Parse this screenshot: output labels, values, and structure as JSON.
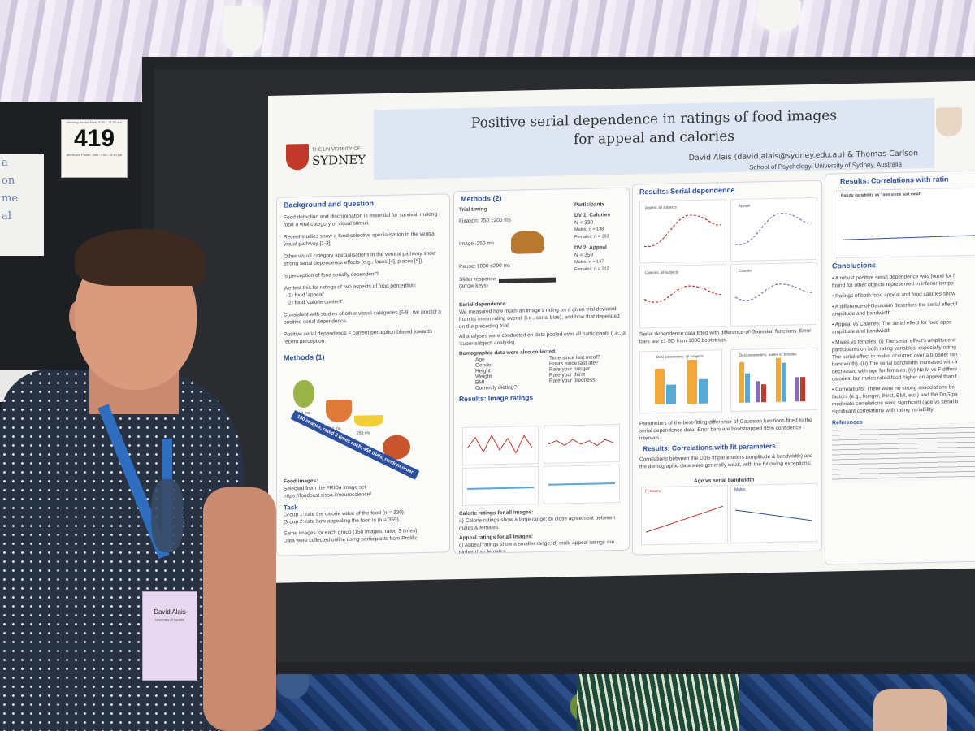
{
  "sign": {
    "number": "419",
    "line_top": "Morning Poster Time: 8:30 – 11:30 am",
    "line_bottom": "Afternoon Poster Time: 4:00 – 5:30 pm"
  },
  "side_note": "a\non\nme\nal",
  "poster": {
    "title_line1": "Positive serial dependence in ratings of food images",
    "title_line2": "for appeal and calories",
    "authors": "David Alais (david.alais@sydney.edu.au) & Thomas Carlson",
    "affiliation": "School of Psychology, University of Sydney, Australia",
    "logo_small": "THE UNIVERSITY OF",
    "logo_big": "SYDNEY",
    "background": {
      "heading": "Background and question",
      "p1": "Food detection and discrimination is essential for survival, making food a vital category of visual stimuli.",
      "p2": "Recent studies show a food-selective specialisation in the ventral visual pathway [1-3].",
      "p3": "Other visual category specialisations in the ventral pathway show strong serial dependence effects (e.g., faces [4], places [5]).",
      "p4": "Is perception of food serially dependent?",
      "p5": "We test this for ratings of two aspects of food perception:",
      "p6": "1) food 'appeal'",
      "p7": "2) food 'calorie content'",
      "p8": "Consistent with studies of other visual categories [6-9], we predict a positive serial dependence.",
      "p9": "Positive serial dependence = current perception biased towards recent perception."
    },
    "methods1": {
      "heading": "Methods (1)",
      "arrow": "150 images, rated 3 times each, 450 trials, random order",
      "ms": "250 ms",
      "food_heading": "Food images:",
      "food_text": "Selected from the FRIDa image set",
      "food_url": "https://foodcast.sissa.it/neuroscience/",
      "task_heading": "Task",
      "task1": "Group 1: rate the calorie value of the food (n = 330).",
      "task2": "Group 2: rate how appealing the food is (n = 359).",
      "task3": "Same images for each group (150 images, rated 3 times)",
      "task4": "Data were collected online using participants from Prolific."
    },
    "methods2": {
      "heading": "Methods (2)",
      "trial_timing": "Trial timing",
      "fixation": "Fixation: 750 ±200 ms",
      "image": "Image: 250 ms",
      "pause": "Pause: 1000 ±200 ms",
      "slider": "Slider response",
      "slider2": "(arrow keys)",
      "participants": "Participants",
      "dv1": "DV 1: Calories",
      "dv1_n": "N = 330",
      "dv1_m": "Males:    n = 138",
      "dv1_f": "Females: n = 192",
      "dv2": "DV 2: Appeal",
      "dv2_n": "N = 359",
      "dv2_m": "Males:    n = 147",
      "dv2_f": "Females: n = 212",
      "sd_heading": "Serial dependence",
      "sd_text": "We measured how much an image's rating on a given trial deviated from its mean rating overall (i.e., serial bias), and how that depended on the preceding trial.",
      "pooled": "All analyses were conducted on data pooled over all participants (i.e., a 'super subject' analysis).",
      "demo_heading": "Demographic data were also collected.",
      "demo_left": [
        "Age",
        "Gender",
        "Height",
        "Weight",
        "BMI",
        "Currently dieting?"
      ],
      "demo_right": [
        "Time since last meal?",
        "Hours since last ate?",
        "Rate your hunger",
        "Rate your thirst",
        "Rate your tiredness"
      ],
      "ratings_heading": "Results: Image ratings",
      "cal_heading": "Calorie ratings for all images:",
      "cal_text": "a) Calorie ratings show a large range; b) close agreement between males & females.",
      "app_heading": "Appeal ratings for all images:",
      "app_text": "c) Appeal ratings show a smaller range; d) male appeal ratings are higher than females."
    },
    "results_sd": {
      "heading": "Results: Serial dependence",
      "panel_labels": [
        "Appeal: all subjects",
        "Appeal",
        "Calories: all subjects",
        "Calories"
      ],
      "caption1": "Serial dependence data fitted with difference-of-Gaussian functions. Error bars are ±1 SD from 1000 bootstraps.",
      "dog1": "DoG parameters: all subjects",
      "dog2": "DoG parameters: males vs females",
      "caption2": "Parameters of the best-fitting difference-of-Gaussian functions fitted to the serial dependence data. Error bars are bootstrapped 95% confidence intervals.",
      "corr_heading": "Results: Correlations with fit parameters",
      "corr_text": "Correlations between the DoG fit parameters (amplitude & bandwidth) and the demographic data were generally weak, with the following exceptions:",
      "corr_plot": "Age vs serial bandwidth",
      "corr_f": "Females",
      "corr_m": "Males"
    },
    "right": {
      "heading": "Results: Correlations with ratin",
      "plot_title": "Rating variability vs 'time since last meal'",
      "conclusions": "Conclusions",
      "c1": "• A robust positive serial dependence was found for f",
      "c1b": "found for other objects represented in inferior tempo",
      "c2": "• Ratings of both food appeal and food calories show",
      "c3": "• A difference-of-Gaussian describes the serial effect f",
      "c3b": "amplitude and bandwidth",
      "c4": "• Appeal vs Calories: The serial effect for food appe",
      "c4b": "amplitude and bandwidth",
      "c5": "• Males vs females: (i) The serial effect's amplitude w",
      "c5b": "participants on both rating variables, especially rating",
      "c5c": "The serial effect in males occurred over a broader ran",
      "c5d": "bandwidth). (iii) The serial bandwidth increased with a",
      "c5e": "decreased with age for females. (iv) No M vs F differe",
      "c5f": "calories, but males rated food higher on appeal than f",
      "c6": "• Correlations: There were no strong associations be",
      "c6b": "factors (e.g., hunger, thirst, BMI, etc.) and the DoG pa",
      "c6c": "moderate correlations were significant (age vs serial b",
      "c6d": "significant correlations with rating variability.",
      "refs": "References"
    }
  },
  "badge": {
    "name": "David Alais",
    "org": "University of Sydney"
  },
  "colors": {
    "poster_blue": "#2c4f9e",
    "bar_orange": "#f2a93b",
    "bar_blue": "#5aa8d6",
    "bar_purple": "#8a6bb5"
  }
}
